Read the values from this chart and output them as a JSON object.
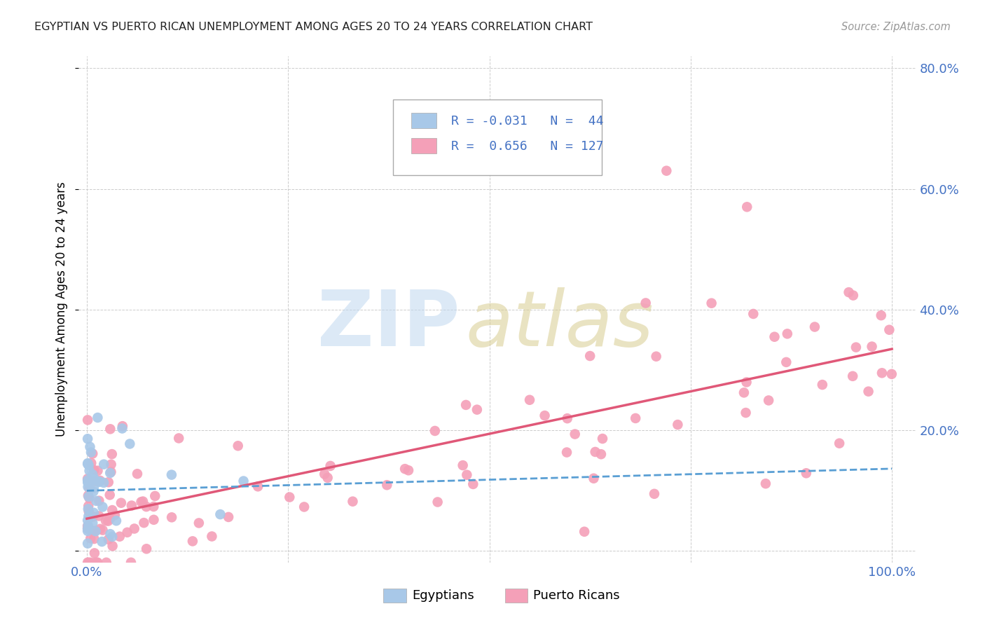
{
  "title": "EGYPTIAN VS PUERTO RICAN UNEMPLOYMENT AMONG AGES 20 TO 24 YEARS CORRELATION CHART",
  "source": "Source: ZipAtlas.com",
  "ylabel": "Unemployment Among Ages 20 to 24 years",
  "egyptian_color": "#a8c8e8",
  "puerto_rican_color": "#f4a0b8",
  "egyptian_line_color": "#5a9fd4",
  "puerto_rican_line_color": "#e05878",
  "grid_color": "#cccccc",
  "tick_color": "#4472c4",
  "title_color": "#222222",
  "source_color": "#999999",
  "bg_color": "#ffffff",
  "xlim": [
    0.0,
    1.0
  ],
  "ylim": [
    0.0,
    0.8
  ],
  "xticks": [
    0.0,
    0.25,
    0.5,
    0.75,
    1.0
  ],
  "xtick_labels": [
    "0.0%",
    "",
    "",
    "",
    "100.0%"
  ],
  "yticks": [
    0.0,
    0.2,
    0.4,
    0.6,
    0.8
  ],
  "ytick_labels": [
    "",
    "20.0%",
    "40.0%",
    "60.0%",
    "80.0%"
  ],
  "legend_R1": "R = -0.031",
  "legend_N1": "N =  44",
  "legend_R2": "R =  0.656",
  "legend_N2": "N = 127",
  "watermark_zip": "ZIP",
  "watermark_atlas": "atlas",
  "zip_color": "#c0d8f0",
  "atlas_color": "#d8cc90",
  "bottom_label1": "Egyptians",
  "bottom_label2": "Puerto Ricans"
}
